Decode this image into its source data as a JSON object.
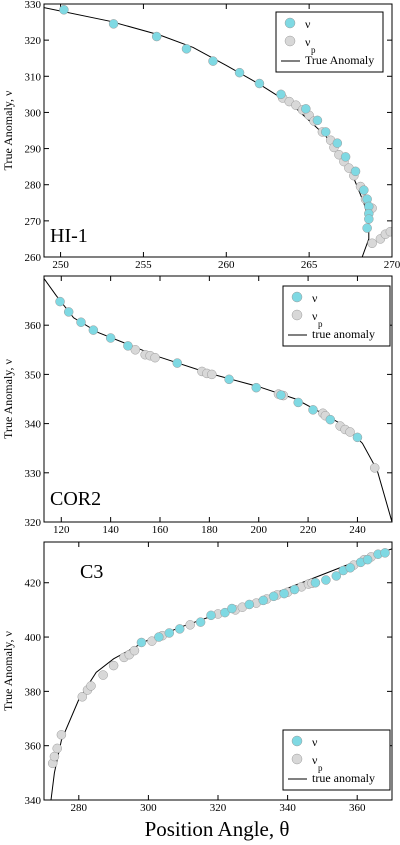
{
  "figure": {
    "xlabel": "Position Angle, θ",
    "colors": {
      "nu": "#7fd9e3",
      "nu_p": "#d8d8d8",
      "curve": "#000000",
      "edge": "#9a9a9a"
    }
  },
  "chart_data": [
    {
      "type": "scatter",
      "panel_label": "HI-1",
      "ylabel": "True Anomaly, ν",
      "xlim": [
        249,
        270
      ],
      "ylim": [
        260,
        330
      ],
      "x_ticks": [
        250,
        255,
        260,
        265,
        270
      ],
      "y_ticks": [
        260,
        270,
        280,
        290,
        300,
        310,
        320,
        330
      ],
      "legend": {
        "position": "top-right",
        "entries": [
          {
            "label": "ν",
            "sub": "",
            "kind": "nu"
          },
          {
            "label": "ν",
            "sub": "p",
            "kind": "nu_p"
          },
          {
            "label": "True Anomaly",
            "sub": "",
            "kind": "curve"
          }
        ]
      },
      "curve": [
        [
          249.0,
          329.0
        ],
        [
          253.0,
          325.2
        ],
        [
          256.0,
          321.4
        ],
        [
          258.0,
          318.0
        ],
        [
          260.0,
          313.0
        ],
        [
          262.0,
          307.8
        ],
        [
          264.0,
          302.0
        ],
        [
          266.0,
          293.5
        ],
        [
          267.5,
          284.0
        ],
        [
          268.3,
          275.0
        ],
        [
          268.6,
          270.0
        ],
        [
          268.6,
          265.0
        ],
        [
          268.2,
          260.0
        ]
      ],
      "series": [
        {
          "kind": "nu_p",
          "points": [
            [
              263.4,
              304.0
            ],
            [
              263.8,
              303.0
            ],
            [
              264.2,
              302.0
            ],
            [
              264.6,
              300.7
            ],
            [
              265.0,
              299.2
            ],
            [
              265.3,
              297.6
            ],
            [
              265.8,
              294.6
            ],
            [
              266.3,
              292.3
            ],
            [
              266.5,
              290.3
            ],
            [
              266.8,
              288.3
            ],
            [
              267.1,
              286.4
            ],
            [
              267.4,
              284.6
            ],
            [
              267.7,
              282.5
            ],
            [
              268.1,
              279.5
            ],
            [
              268.4,
              276.0
            ],
            [
              268.8,
              273.5
            ],
            [
              269.3,
              265.0
            ],
            [
              269.6,
              266.3
            ],
            [
              269.9,
              267.0
            ],
            [
              268.8,
              263.8
            ]
          ]
        },
        {
          "kind": "nu",
          "points": [
            [
              250.2,
              328.4
            ],
            [
              253.2,
              324.5
            ],
            [
              255.8,
              321.0
            ],
            [
              257.6,
              317.6
            ],
            [
              259.2,
              314.2
            ],
            [
              260.8,
              311.0
            ],
            [
              262.0,
              308.0
            ],
            [
              263.3,
              305.0
            ],
            [
              264.8,
              301.0
            ],
            [
              265.5,
              297.8
            ],
            [
              266.0,
              294.6
            ],
            [
              266.7,
              291.5
            ],
            [
              267.2,
              287.7
            ],
            [
              267.8,
              283.7
            ],
            [
              268.3,
              278.5
            ],
            [
              268.5,
              276.0
            ],
            [
              268.6,
              274.0
            ],
            [
              268.6,
              272.0
            ],
            [
              268.6,
              270.5
            ],
            [
              268.5,
              268.0
            ]
          ]
        }
      ]
    },
    {
      "type": "scatter",
      "panel_label": "COR2",
      "ylabel": "True Anomaly, ν",
      "xlim": [
        113,
        254
      ],
      "ylim": [
        320,
        370
      ],
      "x_ticks": [
        120,
        140,
        160,
        180,
        200,
        220,
        240
      ],
      "y_ticks": [
        320,
        330,
        340,
        350,
        360
      ],
      "legend": {
        "position": "top-right",
        "entries": [
          {
            "label": "ν",
            "sub": "",
            "kind": "nu"
          },
          {
            "label": "ν",
            "sub": "p",
            "kind": "nu_p"
          },
          {
            "label": "true anomaly",
            "sub": "",
            "kind": "curve"
          }
        ]
      },
      "curve": [
        [
          113.0,
          369.5
        ],
        [
          118.0,
          366.0
        ],
        [
          125.0,
          361.5
        ],
        [
          135.0,
          358.5
        ],
        [
          145.0,
          356.5
        ],
        [
          160.0,
          353.5
        ],
        [
          180.0,
          350.2
        ],
        [
          200.0,
          347.5
        ],
        [
          215.0,
          345.0
        ],
        [
          225.0,
          342.3
        ],
        [
          235.0,
          339.5
        ],
        [
          242.0,
          336.0
        ],
        [
          248.0,
          330.5
        ],
        [
          254.0,
          320.0
        ]
      ],
      "series": [
        {
          "kind": "nu_p",
          "points": [
            [
              150.0,
              355.0
            ],
            [
              154.0,
              354.0
            ],
            [
              156.0,
              353.8
            ],
            [
              158.0,
              353.4
            ],
            [
              177.0,
              350.6
            ],
            [
              179.0,
              350.2
            ],
            [
              181.0,
              350.0
            ],
            [
              208.0,
              346.0
            ],
            [
              210.0,
              345.7
            ],
            [
              226.0,
              342.1
            ],
            [
              227.0,
              341.6
            ],
            [
              233.0,
              339.5
            ],
            [
              235.0,
              338.8
            ],
            [
              237.0,
              338.3
            ],
            [
              247.0,
              331.0
            ]
          ]
        },
        {
          "kind": "nu",
          "points": [
            [
              119.5,
              364.8
            ],
            [
              123.0,
              362.7
            ],
            [
              128.0,
              360.6
            ],
            [
              133.0,
              359.0
            ],
            [
              140.0,
              357.4
            ],
            [
              147.0,
              355.8
            ],
            [
              167.0,
              352.3
            ],
            [
              188.0,
              349.0
            ],
            [
              199.0,
              347.3
            ],
            [
              209.0,
              345.8
            ],
            [
              216.0,
              344.3
            ],
            [
              222.0,
              342.8
            ],
            [
              229.0,
              340.8
            ],
            [
              240.0,
              337.2
            ]
          ]
        }
      ]
    },
    {
      "type": "scatter",
      "panel_label": "C3",
      "ylabel": "True Anomaly, ν",
      "xlim": [
        270,
        370
      ],
      "ylim": [
        340,
        435
      ],
      "x_ticks": [
        280,
        300,
        320,
        340,
        360
      ],
      "y_ticks": [
        340,
        360,
        380,
        400,
        420
      ],
      "legend": {
        "position": "bottom-right",
        "entries": [
          {
            "label": "ν",
            "sub": "",
            "kind": "nu"
          },
          {
            "label": "ν",
            "sub": "p",
            "kind": "nu_p"
          },
          {
            "label": "true anomaly",
            "sub": "",
            "kind": "curve"
          }
        ]
      },
      "curve": [
        [
          272.0,
          340.0
        ],
        [
          273.0,
          350.0
        ],
        [
          275.0,
          362.0
        ],
        [
          280.0,
          377.0
        ],
        [
          285.0,
          387.0
        ],
        [
          290.0,
          392.0
        ],
        [
          300.0,
          399.0
        ],
        [
          310.0,
          404.0
        ],
        [
          320.0,
          408.5
        ],
        [
          330.0,
          413.0
        ],
        [
          340.0,
          418.0
        ],
        [
          350.0,
          423.0
        ],
        [
          360.0,
          428.0
        ],
        [
          370.0,
          432.5
        ]
      ],
      "series": [
        {
          "kind": "nu_p",
          "points": [
            [
              272.5,
              353.5
            ],
            [
              273.0,
              356.0
            ],
            [
              273.8,
              359.0
            ],
            [
              275.0,
              364.0
            ],
            [
              281.0,
              378.0
            ],
            [
              282.5,
              380.5
            ],
            [
              283.5,
              382.0
            ],
            [
              287.0,
              386.0
            ],
            [
              290.0,
              389.5
            ],
            [
              293.0,
              392.5
            ],
            [
              294.5,
              393.5
            ],
            [
              296.0,
              395.0
            ],
            [
              301.0,
              398.5
            ],
            [
              304.0,
              400.5
            ],
            [
              312.0,
              404.5
            ],
            [
              320.0,
              408.5
            ],
            [
              325.0,
              410.0
            ],
            [
              327.0,
              411.0
            ],
            [
              331.0,
              412.5
            ],
            [
              334.0,
              414.0
            ],
            [
              337.0,
              415.5
            ],
            [
              340.0,
              416.5
            ],
            [
              344.0,
              418.5
            ],
            [
              346.0,
              419.5
            ],
            [
              347.0,
              419.8
            ],
            [
              359.0,
              426.5
            ],
            [
              362.0,
              428.5
            ],
            [
              364.0,
              429.5
            ]
          ]
        },
        {
          "kind": "nu",
          "points": [
            [
              298.0,
              398.0
            ],
            [
              303.0,
              400.0
            ],
            [
              306.0,
              401.5
            ],
            [
              309.0,
              403.0
            ],
            [
              315.0,
              405.5
            ],
            [
              318.0,
              408.0
            ],
            [
              322.0,
              409.0
            ],
            [
              324.0,
              410.5
            ],
            [
              329.0,
              412.0
            ],
            [
              333.0,
              413.5
            ],
            [
              336.0,
              415.0
            ],
            [
              339.0,
              416.0
            ],
            [
              342.0,
              417.5
            ],
            [
              348.0,
              420.0
            ],
            [
              351.0,
              421.0
            ],
            [
              354.0,
              422.5
            ],
            [
              356.0,
              424.5
            ],
            [
              358.0,
              425.5
            ],
            [
              361.0,
              427.5
            ],
            [
              363.0,
              428.5
            ],
            [
              366.0,
              430.5
            ],
            [
              368.0,
              431.0
            ]
          ]
        }
      ]
    }
  ]
}
